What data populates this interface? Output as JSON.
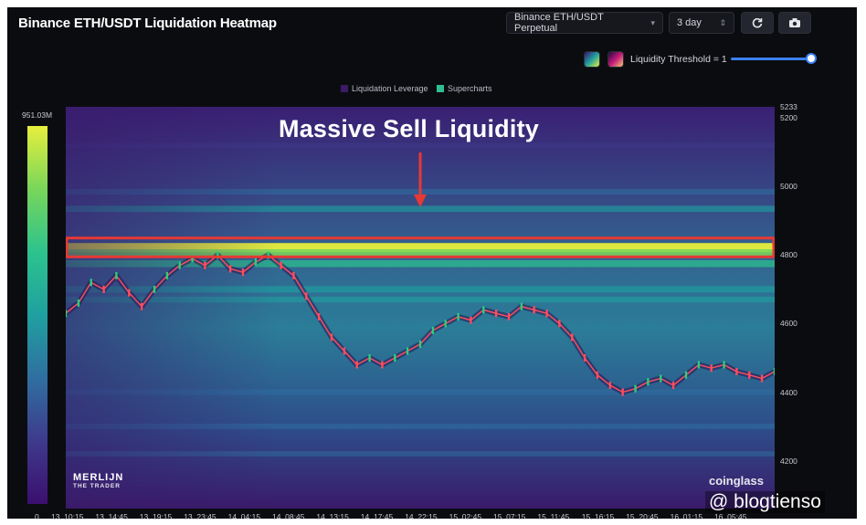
{
  "header": {
    "title": "Binance ETH/USDT Liquidation Heatmap",
    "pair_select": "Binance ETH/USDT Perpetual",
    "range_select": "3 day",
    "refresh_icon": "refresh-icon",
    "camera_icon": "camera-icon"
  },
  "threshold": {
    "label": "Liquidity Threshold = 1",
    "value": 1
  },
  "legend": {
    "items": [
      {
        "label": "Liquidation Leverage",
        "color": "#3b1a66"
      },
      {
        "label": "Supercharts",
        "color": "#2fbf8f"
      }
    ]
  },
  "colorbar": {
    "max_label": "951.03M",
    "min_label": "0",
    "colors": [
      "#3b0f6f",
      "#3e3a8c",
      "#2f6fa0",
      "#1fa0a0",
      "#2cc38d",
      "#79d65a",
      "#e7ef3c"
    ]
  },
  "annotation": {
    "text": "Massive Sell Liquidity",
    "box_price_range": [
      4795,
      4850
    ],
    "arrow_color": "#e53935"
  },
  "watermarks": {
    "left": "MERLIJN",
    "left_sub": "THE TRADER",
    "right": "coinglass",
    "credit": "@ blogtienso"
  },
  "chart_data": {
    "type": "heatmap",
    "title": "Binance ETH/USDT Liquidation Heatmap",
    "ylim": [
      4060,
      5233
    ],
    "y_ticks": [
      "4200",
      "4400",
      "4600",
      "4800",
      "5000",
      "5200",
      "5233"
    ],
    "x_ticks": [
      "13, 10:15",
      "13, 14:45",
      "13, 19:15",
      "13, 23:45",
      "14, 04:15",
      "14, 08:45",
      "14, 13:15",
      "14, 17:45",
      "14, 22:15",
      "15, 02:45",
      "15, 07:15",
      "15, 11:45",
      "15, 16:15",
      "15, 20:45",
      "16, 01:15",
      "16, 05:45"
    ],
    "legend": [
      "Liquidation Leverage",
      "Supercharts"
    ],
    "liquidity_bands": [
      {
        "price": 4822,
        "intensity": 1.0
      },
      {
        "price": 4805,
        "intensity": 0.85
      },
      {
        "price": 4775,
        "intensity": 0.6
      },
      {
        "price": 4935,
        "intensity": 0.45
      },
      {
        "price": 4985,
        "intensity": 0.35
      },
      {
        "price": 4700,
        "intensity": 0.5
      },
      {
        "price": 4670,
        "intensity": 0.42
      },
      {
        "price": 4400,
        "intensity": 0.38
      },
      {
        "price": 4300,
        "intensity": 0.32
      },
      {
        "price": 4220,
        "intensity": 0.28
      },
      {
        "price": 5120,
        "intensity": 0.22
      }
    ],
    "price_series": {
      "name": "ETH/USDT",
      "values": [
        4630,
        4660,
        4720,
        4700,
        4740,
        4690,
        4650,
        4700,
        4740,
        4770,
        4790,
        4770,
        4800,
        4760,
        4750,
        4780,
        4800,
        4770,
        4740,
        4680,
        4620,
        4560,
        4520,
        4480,
        4500,
        4480,
        4500,
        4520,
        4540,
        4580,
        4600,
        4620,
        4610,
        4640,
        4630,
        4620,
        4650,
        4640,
        4630,
        4600,
        4560,
        4500,
        4450,
        4420,
        4400,
        4410,
        4430,
        4440,
        4420,
        4450,
        4480,
        4470,
        4480,
        4460,
        4450,
        4440,
        4460
      ]
    }
  }
}
